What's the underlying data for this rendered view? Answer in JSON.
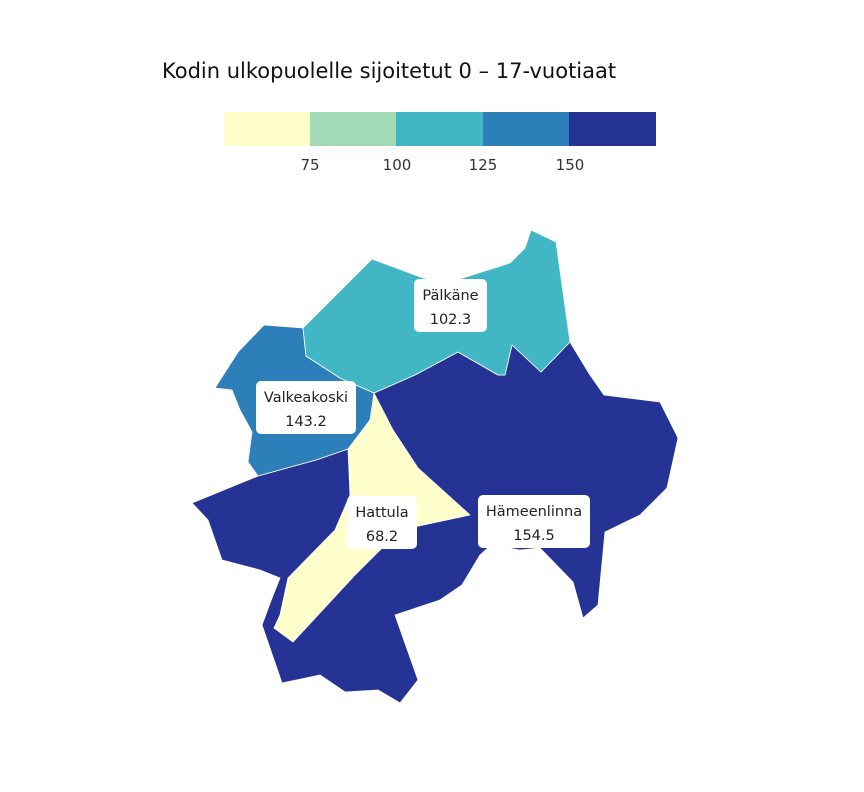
{
  "title": "Kodin ulkopuolelle sijoitetut 0 – 17-vuotiaat",
  "legend": {
    "colors": [
      "#ffffcc",
      "#a1dab4",
      "#41b6c4",
      "#2c7fb8",
      "#253494"
    ],
    "ticks": [
      "75",
      "100",
      "125",
      "150"
    ]
  },
  "regions": [
    {
      "name": "Pälkäne",
      "value": "102.3",
      "color": "#41b6c4"
    },
    {
      "name": "Valkeakoski",
      "value": "143.2",
      "color": "#2c7fb8"
    },
    {
      "name": "Hattula",
      "value": "68.2",
      "color": "#ffffcc"
    },
    {
      "name": "Hämeenlinna",
      "value": "154.5",
      "color": "#253494"
    }
  ]
}
